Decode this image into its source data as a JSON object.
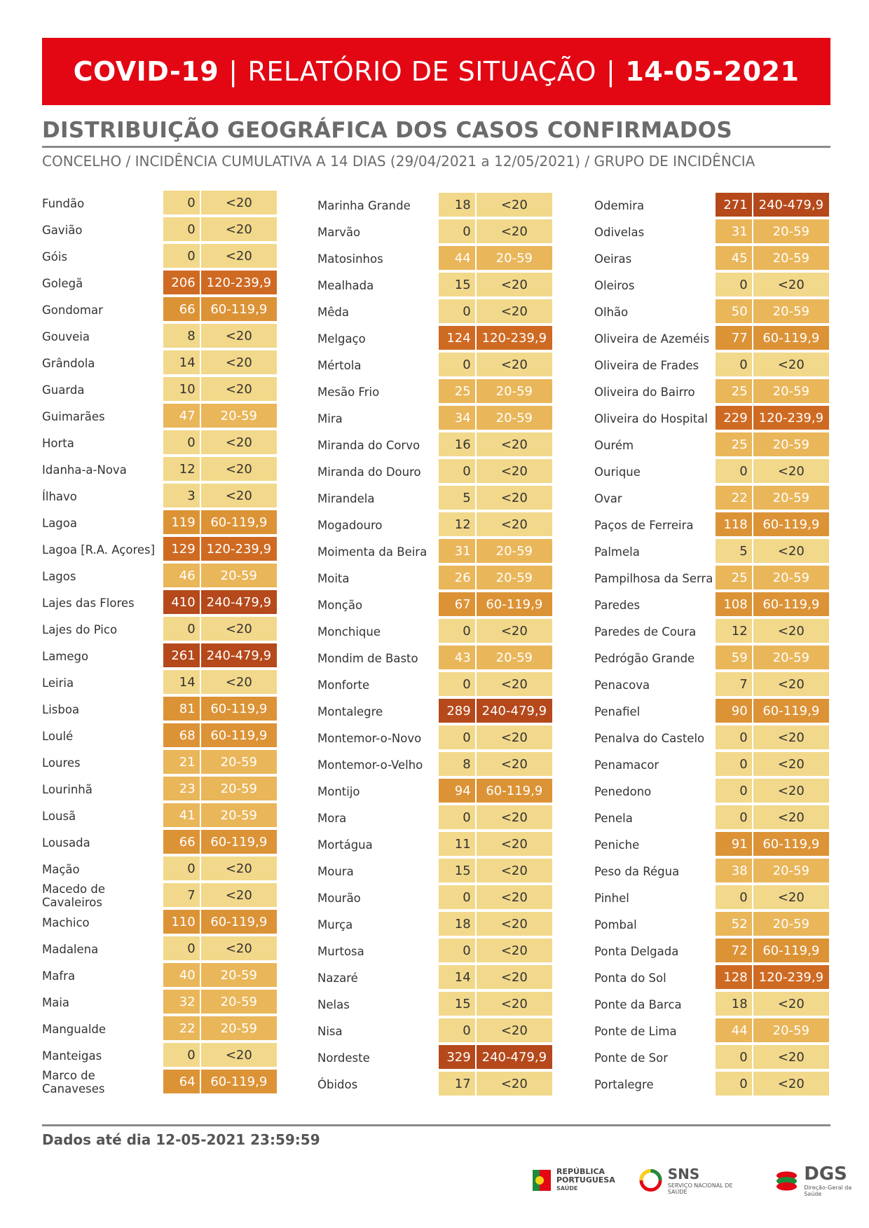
{
  "header": {
    "title_left": "COVID-19",
    "title_middle": "RELATÓRIO DE SITUAÇÃO",
    "title_right": "14-05-2021",
    "separator": "|"
  },
  "section": {
    "title": "DISTRIBUIÇÃO GEOGRÁFICA DOS CASOS CONFIRMADOS",
    "subtitle": "CONCELHO / INCIDÊNCIA CUMULATIVA A 14 DIAS (29/04/2021 a 12/05/2021) / GRUPO DE INCIDÊNCIA"
  },
  "group_colors": {
    "<20": "#f2d88a",
    "20-59": "#e9b659",
    "60-119,9": "#dc9336",
    "120-239,9": "#cf6a23",
    "240-479,9": "#b5491b"
  },
  "columns": [
    [
      {
        "name": "Fundão",
        "value": "0",
        "group": "<20"
      },
      {
        "name": "Gavião",
        "value": "0",
        "group": "<20"
      },
      {
        "name": "Góis",
        "value": "0",
        "group": "<20"
      },
      {
        "name": "Golegã",
        "value": "206",
        "group": "120-239,9"
      },
      {
        "name": "Gondomar",
        "value": "66",
        "group": "60-119,9"
      },
      {
        "name": "Gouveia",
        "value": "8",
        "group": "<20"
      },
      {
        "name": "Grândola",
        "value": "14",
        "group": "<20"
      },
      {
        "name": "Guarda",
        "value": "10",
        "group": "<20"
      },
      {
        "name": "Guimarães",
        "value": "47",
        "group": "20-59"
      },
      {
        "name": "Horta",
        "value": "0",
        "group": "<20"
      },
      {
        "name": "Idanha-a-Nova",
        "value": "12",
        "group": "<20"
      },
      {
        "name": "Ílhavo",
        "value": "3",
        "group": "<20"
      },
      {
        "name": "Lagoa",
        "value": "119",
        "group": "60-119,9"
      },
      {
        "name": "Lagoa [R.A. Açores]",
        "value": "129",
        "group": "120-239,9"
      },
      {
        "name": "Lagos",
        "value": "46",
        "group": "20-59"
      },
      {
        "name": "Lajes das Flores",
        "value": "410",
        "group": "240-479,9"
      },
      {
        "name": "Lajes do Pico",
        "value": "0",
        "group": "<20"
      },
      {
        "name": "Lamego",
        "value": "261",
        "group": "240-479,9"
      },
      {
        "name": "Leiria",
        "value": "14",
        "group": "<20"
      },
      {
        "name": "Lisboa",
        "value": "81",
        "group": "60-119,9"
      },
      {
        "name": "Loulé",
        "value": "68",
        "group": "60-119,9"
      },
      {
        "name": "Loures",
        "value": "21",
        "group": "20-59"
      },
      {
        "name": "Lourinhã",
        "value": "23",
        "group": "20-59"
      },
      {
        "name": "Lousã",
        "value": "41",
        "group": "20-59"
      },
      {
        "name": "Lousada",
        "value": "66",
        "group": "60-119,9"
      },
      {
        "name": "Mação",
        "value": "0",
        "group": "<20"
      },
      {
        "name": "Macedo de Cavaleiros",
        "value": "7",
        "group": "<20"
      },
      {
        "name": "Machico",
        "value": "110",
        "group": "60-119,9"
      },
      {
        "name": "Madalena",
        "value": "0",
        "group": "<20"
      },
      {
        "name": "Mafra",
        "value": "40",
        "group": "20-59"
      },
      {
        "name": "Maia",
        "value": "32",
        "group": "20-59"
      },
      {
        "name": "Mangualde",
        "value": "22",
        "group": "20-59"
      },
      {
        "name": "Manteigas",
        "value": "0",
        "group": "<20"
      },
      {
        "name": "Marco de Canaveses",
        "value": "64",
        "group": "60-119,9"
      }
    ],
    [
      {
        "name": "Marinha Grande",
        "value": "18",
        "group": "<20"
      },
      {
        "name": "Marvão",
        "value": "0",
        "group": "<20"
      },
      {
        "name": "Matosinhos",
        "value": "44",
        "group": "20-59"
      },
      {
        "name": "Mealhada",
        "value": "15",
        "group": "<20"
      },
      {
        "name": "Mêda",
        "value": "0",
        "group": "<20"
      },
      {
        "name": "Melgaço",
        "value": "124",
        "group": "120-239,9"
      },
      {
        "name": "Mértola",
        "value": "0",
        "group": "<20"
      },
      {
        "name": "Mesão Frio",
        "value": "25",
        "group": "20-59"
      },
      {
        "name": "Mira",
        "value": "34",
        "group": "20-59"
      },
      {
        "name": "Miranda do Corvo",
        "value": "16",
        "group": "<20"
      },
      {
        "name": "Miranda do Douro",
        "value": "0",
        "group": "<20"
      },
      {
        "name": "Mirandela",
        "value": "5",
        "group": "<20"
      },
      {
        "name": "Mogadouro",
        "value": "12",
        "group": "<20"
      },
      {
        "name": "Moimenta da Beira",
        "value": "31",
        "group": "20-59"
      },
      {
        "name": "Moita",
        "value": "26",
        "group": "20-59"
      },
      {
        "name": "Monção",
        "value": "67",
        "group": "60-119,9"
      },
      {
        "name": "Monchique",
        "value": "0",
        "group": "<20"
      },
      {
        "name": "Mondim de Basto",
        "value": "43",
        "group": "20-59"
      },
      {
        "name": "Monforte",
        "value": "0",
        "group": "<20"
      },
      {
        "name": "Montalegre",
        "value": "289",
        "group": "240-479,9"
      },
      {
        "name": "Montemor-o-Novo",
        "value": "0",
        "group": "<20"
      },
      {
        "name": "Montemor-o-Velho",
        "value": "8",
        "group": "<20"
      },
      {
        "name": "Montijo",
        "value": "94",
        "group": "60-119,9"
      },
      {
        "name": "Mora",
        "value": "0",
        "group": "<20"
      },
      {
        "name": "Mortágua",
        "value": "11",
        "group": "<20"
      },
      {
        "name": "Moura",
        "value": "15",
        "group": "<20"
      },
      {
        "name": "Mourão",
        "value": "0",
        "group": "<20"
      },
      {
        "name": "Murça",
        "value": "18",
        "group": "<20"
      },
      {
        "name": "Murtosa",
        "value": "0",
        "group": "<20"
      },
      {
        "name": "Nazaré",
        "value": "14",
        "group": "<20"
      },
      {
        "name": "Nelas",
        "value": "15",
        "group": "<20"
      },
      {
        "name": "Nisa",
        "value": "0",
        "group": "<20"
      },
      {
        "name": "Nordeste",
        "value": "329",
        "group": "240-479,9"
      },
      {
        "name": "Óbidos",
        "value": "17",
        "group": "<20"
      }
    ],
    [
      {
        "name": "Odemira",
        "value": "271",
        "group": "240-479,9"
      },
      {
        "name": "Odivelas",
        "value": "31",
        "group": "20-59"
      },
      {
        "name": "Oeiras",
        "value": "45",
        "group": "20-59"
      },
      {
        "name": "Oleiros",
        "value": "0",
        "group": "<20"
      },
      {
        "name": "Olhão",
        "value": "50",
        "group": "20-59"
      },
      {
        "name": "Oliveira de Azeméis",
        "value": "77",
        "group": "60-119,9"
      },
      {
        "name": "Oliveira de Frades",
        "value": "0",
        "group": "<20"
      },
      {
        "name": "Oliveira do Bairro",
        "value": "25",
        "group": "20-59"
      },
      {
        "name": "Oliveira do Hospital",
        "value": "229",
        "group": "120-239,9"
      },
      {
        "name": "Ourém",
        "value": "25",
        "group": "20-59"
      },
      {
        "name": "Ourique",
        "value": "0",
        "group": "<20"
      },
      {
        "name": "Ovar",
        "value": "22",
        "group": "20-59"
      },
      {
        "name": "Paços de Ferreira",
        "value": "118",
        "group": "60-119,9"
      },
      {
        "name": "Palmela",
        "value": "5",
        "group": "<20"
      },
      {
        "name": "Pampilhosa da Serra",
        "value": "25",
        "group": "20-59"
      },
      {
        "name": "Paredes",
        "value": "108",
        "group": "60-119,9"
      },
      {
        "name": "Paredes de Coura",
        "value": "12",
        "group": "<20"
      },
      {
        "name": "Pedrógão Grande",
        "value": "59",
        "group": "20-59"
      },
      {
        "name": "Penacova",
        "value": "7",
        "group": "<20"
      },
      {
        "name": "Penafiel",
        "value": "90",
        "group": "60-119,9"
      },
      {
        "name": "Penalva do Castelo",
        "value": "0",
        "group": "<20"
      },
      {
        "name": "Penamacor",
        "value": "0",
        "group": "<20"
      },
      {
        "name": "Penedono",
        "value": "0",
        "group": "<20"
      },
      {
        "name": "Penela",
        "value": "0",
        "group": "<20"
      },
      {
        "name": "Peniche",
        "value": "91",
        "group": "60-119,9"
      },
      {
        "name": "Peso da Régua",
        "value": "38",
        "group": "20-59"
      },
      {
        "name": "Pinhel",
        "value": "0",
        "group": "<20"
      },
      {
        "name": "Pombal",
        "value": "52",
        "group": "20-59"
      },
      {
        "name": "Ponta Delgada",
        "value": "72",
        "group": "60-119,9"
      },
      {
        "name": "Ponta do Sol",
        "value": "128",
        "group": "120-239,9"
      },
      {
        "name": "Ponte da Barca",
        "value": "18",
        "group": "<20"
      },
      {
        "name": "Ponte de Lima",
        "value": "44",
        "group": "20-59"
      },
      {
        "name": "Ponte de Sor",
        "value": "0",
        "group": "<20"
      },
      {
        "name": "Portalegre",
        "value": "0",
        "group": "<20"
      }
    ]
  ],
  "footer": {
    "text": "Dados até dia 12-05-2021 23:59:59",
    "logos": {
      "republica_line1": "REPÚBLICA",
      "republica_line2": "PORTUGUESA",
      "republica_line3": "SAÚDE",
      "sns_big": "SNS",
      "sns_small": "SERVIÇO NACIONAL DE SAÚDE",
      "dgs_big": "DGS",
      "dgs_small": "Direção-Geral da Saúde"
    }
  }
}
